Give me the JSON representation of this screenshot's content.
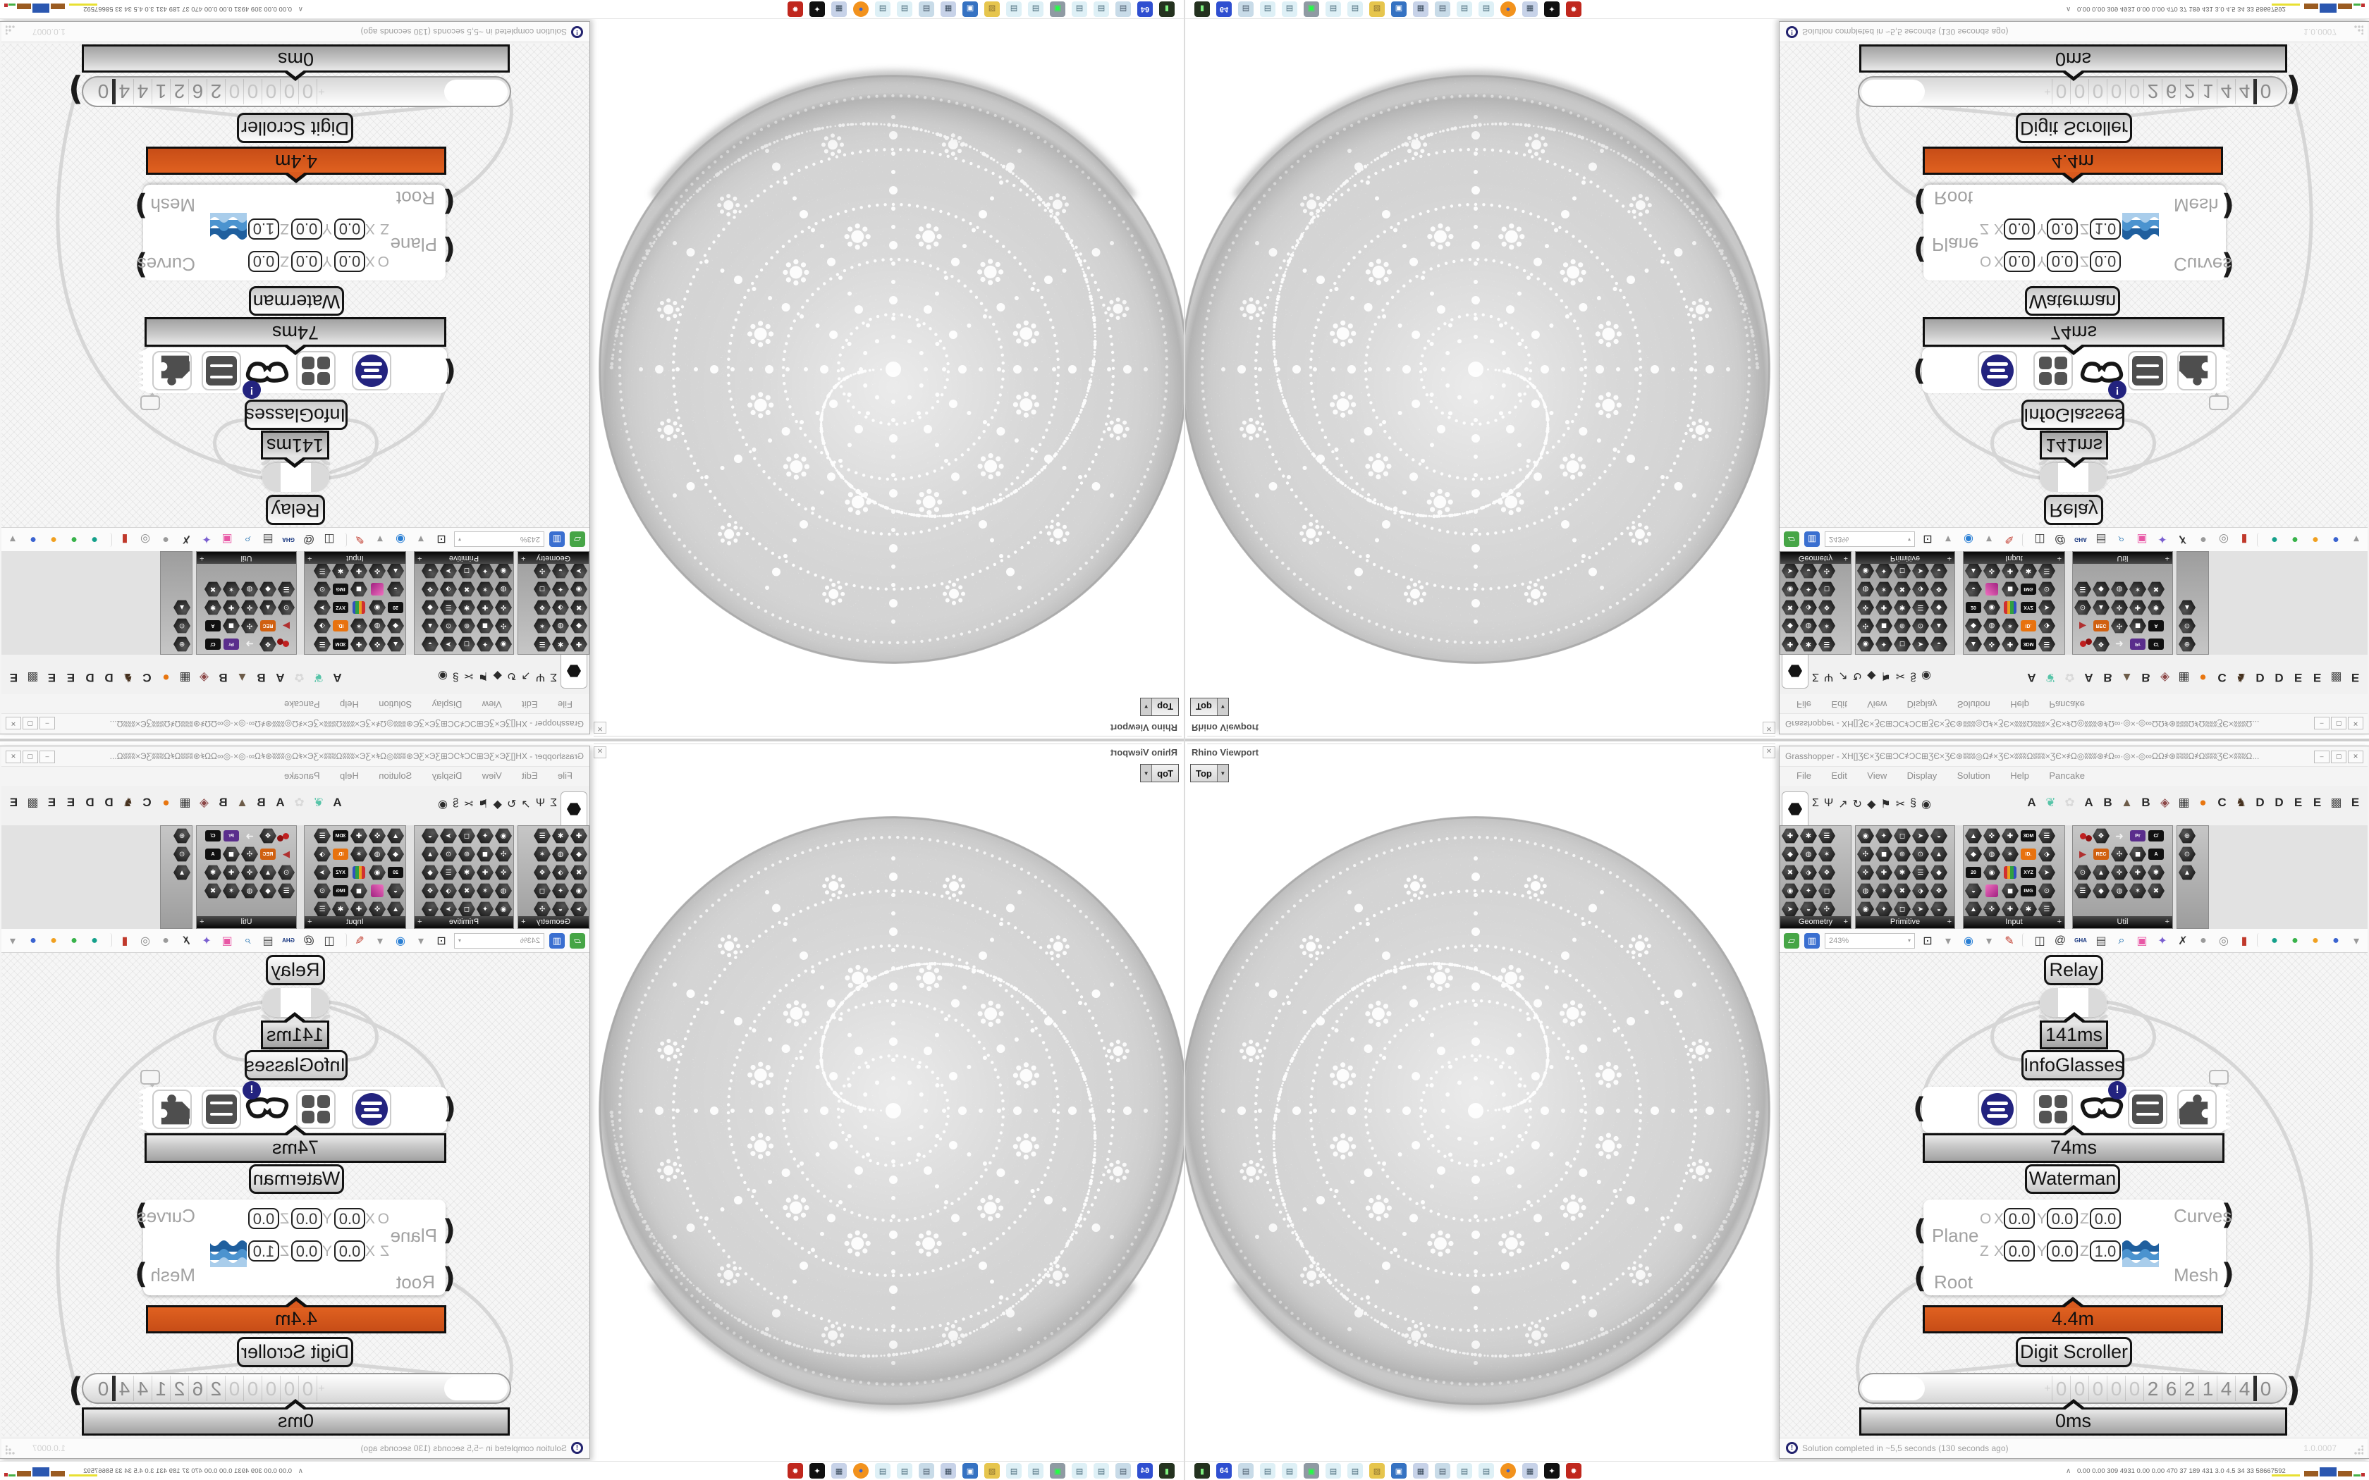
{
  "grasshopper": {
    "title": "Grasshopper - XH[]ƷЄ×ƷЄ⊞ƆC҂ƆC⊞ƷЄ×ƷЄ⊛ʬʬʬ◎Ω҂×ƷЄ×ʬʬʬΩʬʬʬ×ƷЄ×҂Ω◎ʬʬʬ⊛҂Ω∞·◎×·◎∞ΩΩ҂⊛ʬʬʬΩ҂ΩʬʬʬƷЄ×ʬʬʬΩ...",
    "window_buttons": {
      "minimize": "–",
      "maximize": "▢",
      "close": "✕"
    },
    "menu": [
      "File",
      "Edit",
      "View",
      "Display",
      "Solution",
      "Help",
      "Pancake"
    ],
    "tab_glyphs": [
      "Σ",
      "Ψ",
      "↗",
      "↻",
      "◆",
      "⚑",
      "✂",
      "§",
      "◉"
    ],
    "plugin_tabs": [
      {
        "label": "A",
        "color": "#2b2b2b"
      },
      {
        "label": "❦",
        "color": "#57c4a8"
      },
      {
        "label": "✿",
        "color": "#d9d9d9"
      },
      {
        "label": "A",
        "color": "#2b2b2b"
      },
      {
        "label": "B",
        "color": "#2b2b2b"
      },
      {
        "label": "▲",
        "color": "#6d5c49"
      },
      {
        "label": "B",
        "color": "#2b2b2b"
      },
      {
        "label": "◈",
        "color": "#8c4848"
      },
      {
        "label": "▦",
        "color": "#3a3a3a"
      },
      {
        "label": "●",
        "color": "#e87610"
      },
      {
        "label": "C",
        "color": "#2b2b2b"
      },
      {
        "label": "♞",
        "color": "#45301d"
      },
      {
        "label": "D",
        "color": "#2b2b2b"
      },
      {
        "label": "D",
        "color": "#2b2b2b"
      },
      {
        "label": "E",
        "color": "#2b2b2b"
      },
      {
        "label": "E",
        "color": "#2b2b2b"
      },
      {
        "label": "▩",
        "color": "#4a4a4a"
      },
      {
        "label": "E",
        "color": "#2b2b2b"
      }
    ],
    "panels": [
      {
        "label": "Geometry",
        "add": "+"
      },
      {
        "label": "Primitive",
        "add": "+"
      },
      {
        "label": "Input",
        "add": "+"
      },
      {
        "label": "Util",
        "add": "+"
      }
    ],
    "toolbar": {
      "zoom_value": "243%",
      "icons": [
        {
          "name": "zoom-extents-icon",
          "glyph": "⊡",
          "fg": "#222222"
        },
        {
          "name": "dropdown-caret-icon",
          "glyph": "▾",
          "fg": "#999999"
        },
        {
          "name": "preview-eye-icon",
          "glyph": "◉",
          "fg": "#2a7fd4"
        },
        {
          "name": "dropdown-caret-icon",
          "glyph": "▾",
          "fg": "#999999"
        },
        {
          "name": "sketch-pencil-icon",
          "glyph": "✎",
          "fg": "#c0392b"
        },
        {
          "name": "separator",
          "glyph": "",
          "fg": ""
        },
        {
          "name": "clamp-icon",
          "glyph": "◫",
          "fg": "#333333"
        },
        {
          "name": "remote-panel-icon",
          "glyph": "@",
          "fg": "#333333"
        },
        {
          "name": "gha-updater-icon",
          "glyph": "GHA",
          "fg": "#16357f"
        },
        {
          "name": "document-icon",
          "glyph": "▤",
          "fg": "#555555"
        },
        {
          "name": "search-dollar-icon",
          "glyph": "⌕",
          "fg": "#0a62a8"
        },
        {
          "name": "help-box-icon",
          "glyph": "▣",
          "fg": "#e857a5"
        },
        {
          "name": "idea-bulb-icon",
          "glyph": "✦",
          "fg": "#7a5fd0"
        },
        {
          "name": "wire-cross-icon",
          "glyph": "✗",
          "fg": "#333333"
        },
        {
          "name": "mesh-blob-icon",
          "glyph": "●",
          "fg": "#9a9a9a"
        },
        {
          "name": "torus-icon",
          "glyph": "◎",
          "fg": "#8a8a8a"
        },
        {
          "name": "cylinder-icon",
          "glyph": "▮",
          "fg": "#c0392b"
        },
        {
          "name": "separator",
          "glyph": "",
          "fg": ""
        },
        {
          "name": "display-teal-icon",
          "glyph": "●",
          "fg": "#14a08a"
        },
        {
          "name": "display-green-icon",
          "glyph": "●",
          "fg": "#38b24a"
        },
        {
          "name": "display-orange-icon",
          "glyph": "●",
          "fg": "#f0a020"
        },
        {
          "name": "display-blue-icon",
          "glyph": "●",
          "fg": "#3a63d0"
        },
        {
          "name": "dropdown-caret-icon",
          "glyph": "▾",
          "fg": "#999999"
        }
      ],
      "file_icons": [
        {
          "name": "open-file-icon",
          "glyph": "▱",
          "fg": "#ffffff",
          "bg": "#46a546"
        },
        {
          "name": "save-file-icon",
          "glyph": "▥",
          "fg": "#ffffff",
          "bg": "#3a6fd0"
        }
      ]
    },
    "status": {
      "message": "Solution completed in ~5,5 seconds (130 seconds ago)",
      "version": "1.0.0007",
      "icon_glyph": "!"
    }
  },
  "canvas": {
    "relay": {
      "label": "Relay"
    },
    "relay_timer": {
      "value": "141ms"
    },
    "infoglasses": {
      "label": "InfoGlasses",
      "badge": "!"
    },
    "infoglasses_timer": {
      "value": "74ms"
    },
    "waterman": {
      "label": "Waterman",
      "input_plane": "Plane",
      "input_root": "Root",
      "output_curves": "Curves",
      "output_mesh": "Mesh",
      "origin_row": {
        "prefix": "O",
        "x_label": "X",
        "x": "0.0",
        "y_label": "Y",
        "y": "0.0",
        "z_label": "Z",
        "z": "0.0"
      },
      "zaxis_row": {
        "prefix": "Z",
        "x_label": "X",
        "x": "0.0",
        "y_label": "Y",
        "y": "0.0",
        "z_label": "Z",
        "z": "1.0"
      }
    },
    "waterman_timer": {
      "value": "4.4m"
    },
    "digit_scroller": {
      "label": "Digit Scroller",
      "overflow_mark": "+",
      "faint_digits": [
        "0",
        "0",
        "0",
        "0",
        "0"
      ],
      "digits": [
        "2",
        "6",
        "2",
        "1",
        "4",
        "4"
      ],
      "unit_digit": "0"
    },
    "scroller_timer": {
      "value": "0ms"
    }
  },
  "viewport": {
    "title": "Rhino Viewport",
    "close": "✕",
    "view_tab": "Top",
    "view_tab_caret": "▼"
  },
  "taskbar": {
    "tray_chevron": "∧",
    "tray_numbers": "0.00 0.00  309  4931 0.00 0.00  470   37   189   431   3.0   4.5   34   33  58667592",
    "icons": [
      {
        "name": "drive-icon",
        "glyph": "▮",
        "bg": "#24321f",
        "fg": "#7ef07e"
      },
      {
        "name": "floppy-icon",
        "glyph": "64",
        "bg": "#2f4fd0",
        "fg": "#ffffff"
      },
      {
        "name": "printer-icon",
        "glyph": "▤",
        "bg": "#c8dbe8",
        "fg": "#445566"
      },
      {
        "name": "notepad-icon",
        "glyph": "▤",
        "bg": "#def0f6",
        "fg": "#446677"
      },
      {
        "name": "notepad-icon",
        "glyph": "▤",
        "bg": "#def0f6",
        "fg": "#446677"
      },
      {
        "name": "monitor-icon",
        "glyph": "▣",
        "bg": "#8f9aa3",
        "fg": "#22ff44"
      },
      {
        "name": "notepad-icon",
        "glyph": "▤",
        "bg": "#def0f6",
        "fg": "#446677"
      },
      {
        "name": "notepad-icon",
        "glyph": "▤",
        "bg": "#def0f6",
        "fg": "#446677"
      },
      {
        "name": "folder-icon",
        "glyph": "▨",
        "bg": "#e6c54d",
        "fg": "#8a7030"
      },
      {
        "name": "computer-icon",
        "glyph": "▣",
        "bg": "#3572c2",
        "fg": "#ffffff"
      },
      {
        "name": "calculator-icon",
        "glyph": "▦",
        "bg": "#c7d2e8",
        "fg": "#334455"
      },
      {
        "name": "printer-icon",
        "glyph": "▤",
        "bg": "#c8dbe8",
        "fg": "#445566"
      },
      {
        "name": "notepad-icon",
        "glyph": "▤",
        "bg": "#def0f6",
        "fg": "#446677"
      },
      {
        "name": "notepad-icon",
        "glyph": "▤",
        "bg": "#def0f6",
        "fg": "#446677"
      },
      {
        "name": "firefox-icon",
        "glyph": "●",
        "bg": "#f2921d",
        "fg": "#3a63d0"
      },
      {
        "name": "calculator-icon",
        "glyph": "▦",
        "bg": "#c7d2e8",
        "fg": "#334455"
      },
      {
        "name": "rhino-icon",
        "glyph": "✦",
        "bg": "#101010",
        "fg": "#ffffff"
      },
      {
        "name": "red-app-icon",
        "glyph": "✹",
        "bg": "#c0271d",
        "fg": "#ffffff"
      }
    ]
  }
}
